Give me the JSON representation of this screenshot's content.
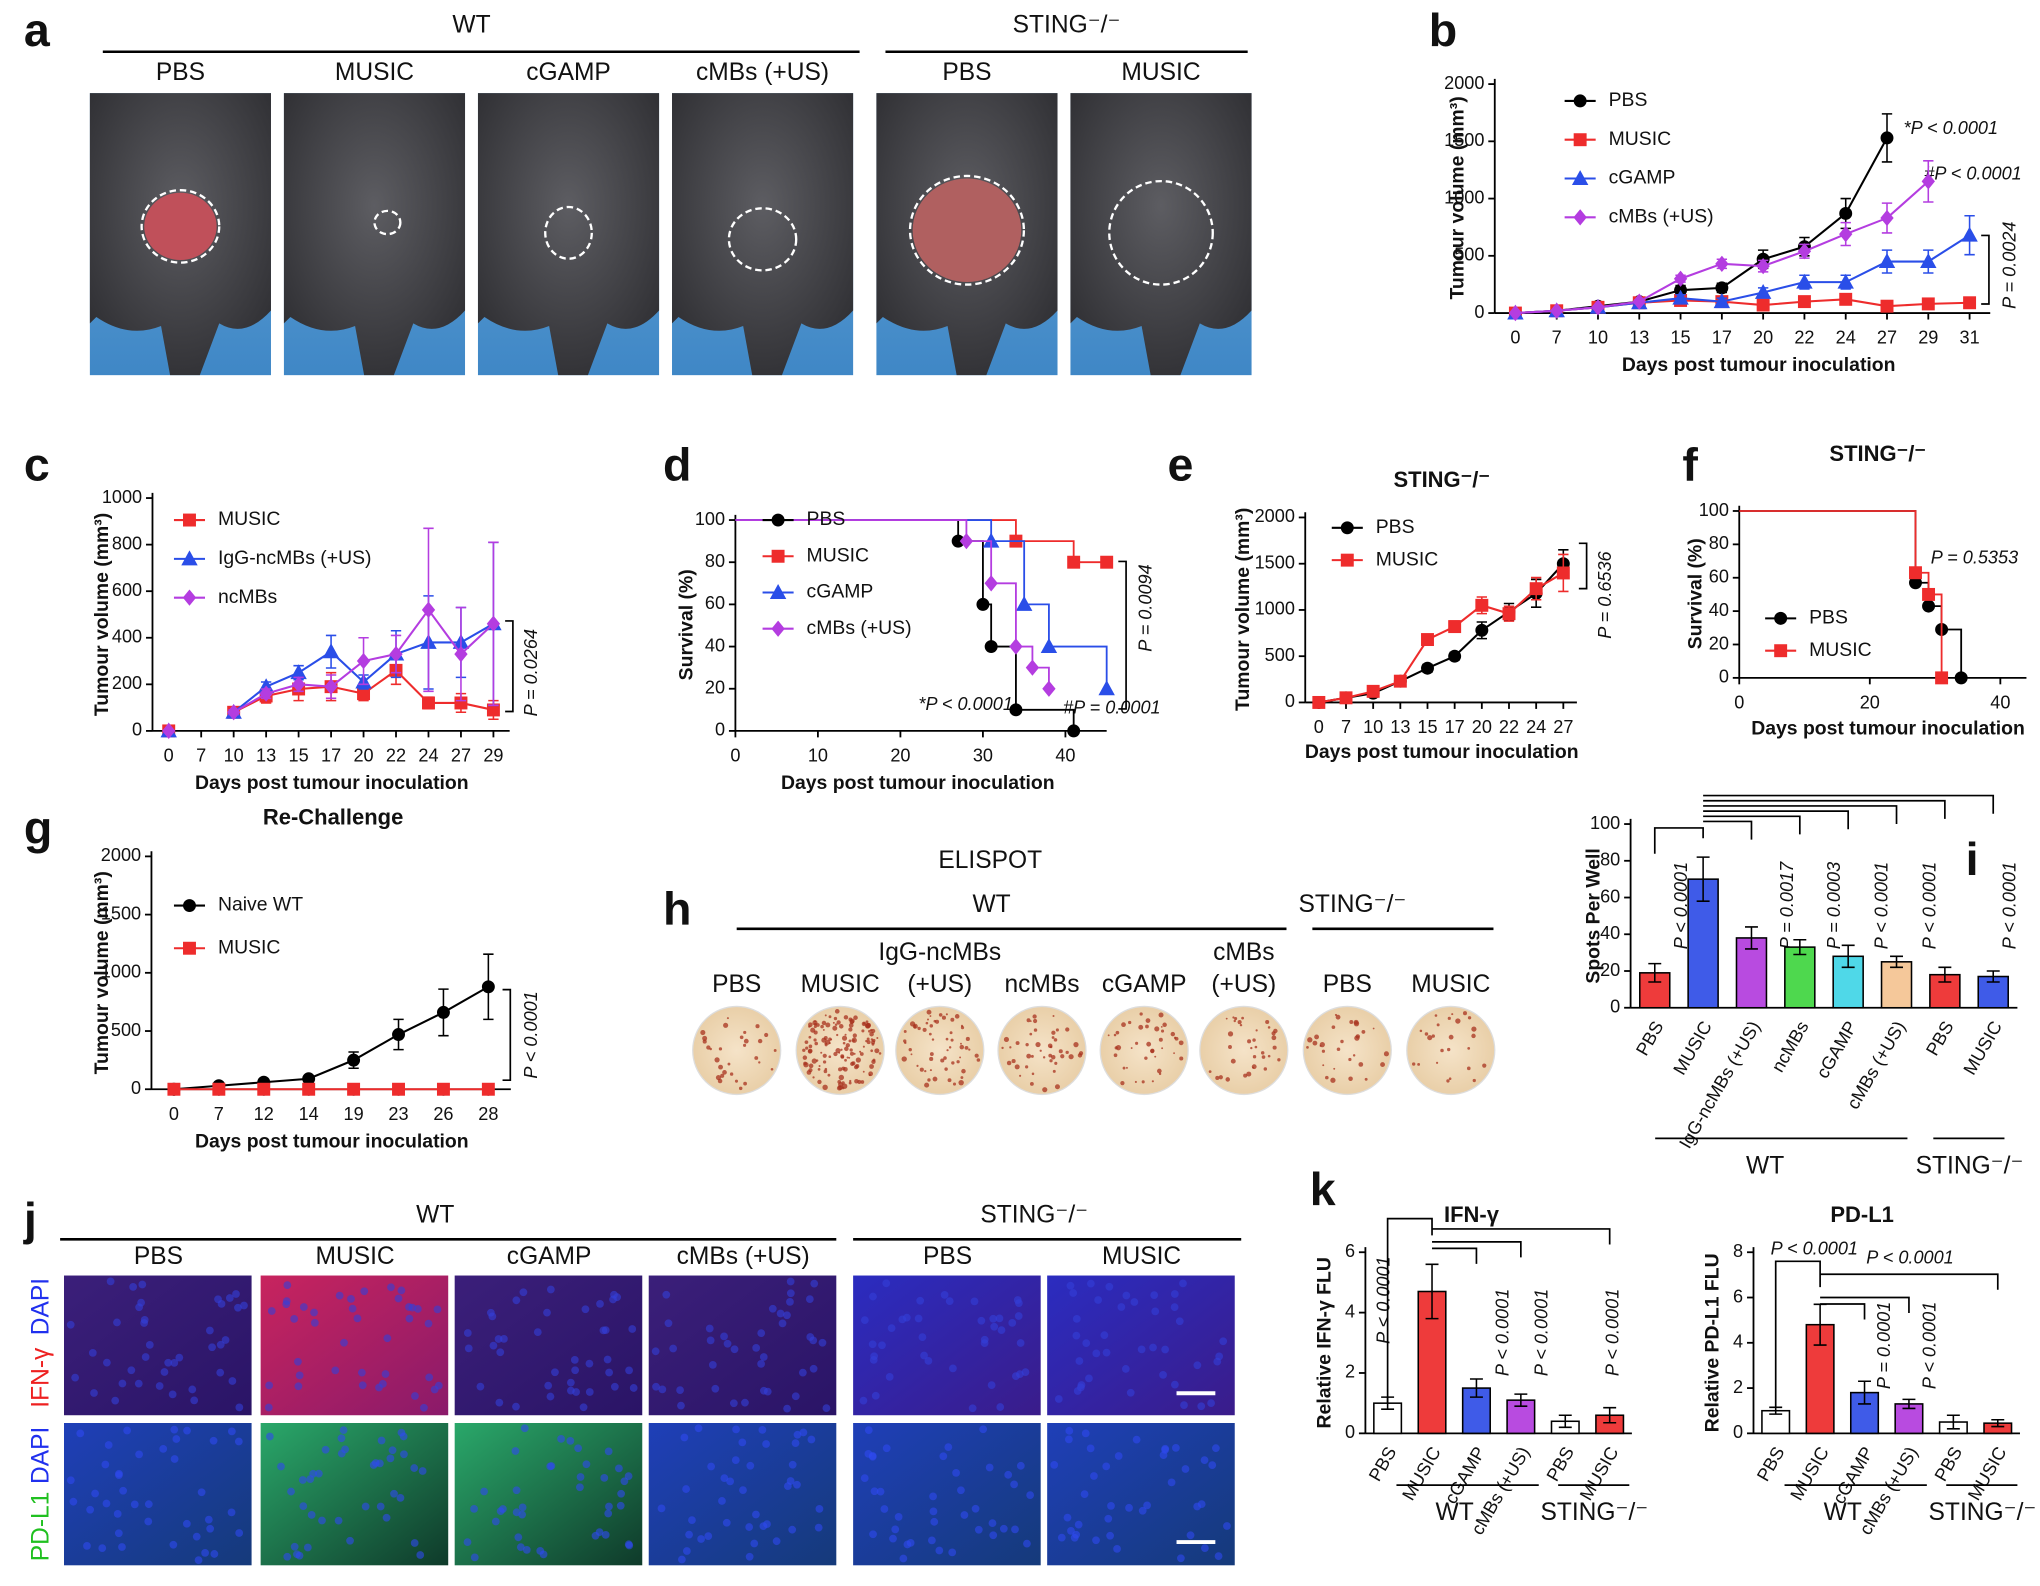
{
  "panel_letters": [
    "a",
    "b",
    "c",
    "d",
    "e",
    "f",
    "g",
    "h",
    "i",
    "j",
    "k"
  ],
  "panel_a": {
    "groups": [
      "WT",
      "STING⁻/⁻"
    ],
    "labels": [
      "PBS",
      "MUSIC",
      "cGAMP",
      "cMBs (+US)",
      "PBS",
      "MUSIC"
    ]
  },
  "panel_h": {
    "title": "ELISPOT",
    "groups": [
      "WT",
      "STING⁻/⁻"
    ],
    "labels": [
      [
        "PBS"
      ],
      [
        "MUSIC"
      ],
      [
        "IgG-ncMBs",
        "(+US)"
      ],
      [
        "ncMBs"
      ],
      [
        "cGAMP"
      ],
      [
        "cMBs",
        "(+US)"
      ],
      [
        "PBS"
      ],
      [
        "MUSIC"
      ]
    ]
  },
  "panel_j": {
    "groups": [
      "WT",
      "STING⁻/⁻"
    ],
    "labels": [
      "PBS",
      "MUSIC",
      "cGAMP",
      "cMBs (+US)",
      "PBS",
      "MUSIC"
    ],
    "row_labels": [
      [
        "IFN-γ",
        "DAPI"
      ],
      [
        "PD-L1",
        "DAPI"
      ]
    ]
  },
  "chart_data": [
    {
      "type": "line",
      "x_label": "Days post tumour inoculation",
      "y_label": "Tumour volume (mm³)",
      "categories": [
        "0",
        "7",
        "10",
        "13",
        "15",
        "17",
        "20",
        "22",
        "24",
        "27",
        "29",
        "31"
      ],
      "ylim": [
        0,
        2000
      ],
      "yticks": [
        0,
        500,
        1000,
        1500,
        2000
      ],
      "series": [
        {
          "name": "PBS",
          "color": "#000000",
          "marker": "circle",
          "values": [
            0,
            20,
            60,
            100,
            200,
            220,
            470,
            580,
            870,
            1530,
            null,
            null
          ],
          "errors": [
            0,
            10,
            15,
            20,
            40,
            40,
            80,
            80,
            130,
            210,
            null,
            null
          ]
        },
        {
          "name": "MUSIC",
          "color": "#ee2c2c",
          "marker": "square",
          "values": [
            0,
            20,
            50,
            90,
            110,
            100,
            70,
            100,
            120,
            60,
            80,
            90
          ],
          "errors": [
            0,
            5,
            10,
            15,
            30,
            25,
            20,
            20,
            20,
            15,
            20,
            30
          ]
        },
        {
          "name": "cGAMP",
          "color": "#2a4ee8",
          "marker": "triangle",
          "values": [
            0,
            20,
            50,
            90,
            130,
            100,
            180,
            270,
            270,
            450,
            450,
            680
          ],
          "errors": [
            0,
            5,
            10,
            15,
            30,
            30,
            40,
            60,
            60,
            100,
            100,
            170
          ]
        },
        {
          "name": "cMBs (+US)",
          "color": "#b43de0",
          "marker": "diamond",
          "values": [
            0,
            20,
            50,
            100,
            300,
            430,
            410,
            540,
            690,
            830,
            1150,
            null
          ],
          "errors": [
            0,
            5,
            10,
            15,
            30,
            40,
            50,
            60,
            100,
            130,
            180,
            null
          ]
        }
      ],
      "annotations": [
        "*P < 0.0001",
        "#P < 0.0001",
        "P = 0.0024"
      ]
    },
    {
      "type": "line",
      "x_label": "Days post tumour inoculation",
      "y_label": "Tumour volume (mm³)",
      "categories": [
        "0",
        "7",
        "10",
        "13",
        "15",
        "17",
        "20",
        "22",
        "24",
        "27",
        "29"
      ],
      "ylim": [
        0,
        1000
      ],
      "yticks": [
        0,
        200,
        400,
        600,
        800,
        1000
      ],
      "series": [
        {
          "name": "MUSIC",
          "color": "#ee2c2c",
          "marker": "square",
          "values": [
            0,
            null,
            80,
            150,
            180,
            190,
            160,
            260,
            120,
            120,
            90
          ],
          "errors": [
            0,
            null,
            10,
            30,
            50,
            60,
            30,
            60,
            25,
            40,
            40
          ]
        },
        {
          "name": "IgG-ncMBs (+US)",
          "color": "#2a4ee8",
          "marker": "triangle",
          "values": [
            0,
            null,
            80,
            190,
            250,
            340,
            210,
            330,
            380,
            380,
            460
          ],
          "errors": [
            0,
            null,
            10,
            20,
            30,
            70,
            30,
            100,
            200,
            150,
            350
          ]
        },
        {
          "name": "ncMBs",
          "color": "#b43de0",
          "marker": "diamond",
          "values": [
            0,
            null,
            80,
            160,
            200,
            190,
            300,
            330,
            520,
            330,
            460
          ],
          "errors": [
            0,
            null,
            10,
            20,
            30,
            50,
            100,
            80,
            350,
            200,
            350
          ]
        }
      ],
      "annotations": [
        "P = 0.0264"
      ]
    },
    {
      "type": "step",
      "x_label": "Days post tumour inoculation",
      "y_label": "Survival (%)",
      "xlim": [
        0,
        45
      ],
      "xticks": [
        0,
        10,
        20,
        30,
        40
      ],
      "ylim": [
        0,
        100
      ],
      "yticks": [
        0,
        20,
        40,
        60,
        80,
        100
      ],
      "series": [
        {
          "name": "PBS",
          "color": "#000000",
          "marker": "circle",
          "x": [
            0,
            27,
            30,
            31,
            34,
            41
          ],
          "values": [
            100,
            90,
            60,
            40,
            10,
            0
          ]
        },
        {
          "name": "MUSIC",
          "color": "#ee2c2c",
          "marker": "square",
          "x": [
            0,
            34,
            41,
            45
          ],
          "values": [
            100,
            90,
            80,
            80
          ]
        },
        {
          "name": "cGAMP",
          "color": "#2a4ee8",
          "marker": "triangle",
          "x": [
            0,
            31,
            35,
            38,
            45
          ],
          "values": [
            100,
            90,
            60,
            40,
            20
          ]
        },
        {
          "name": "cMBs (+US)",
          "color": "#b43de0",
          "marker": "diamond",
          "x": [
            0,
            28,
            31,
            34,
            36,
            38
          ],
          "values": [
            100,
            90,
            70,
            40,
            30,
            20
          ]
        }
      ],
      "annotations": [
        "*P < 0.0001",
        "#P = 0.0001",
        "P = 0.0094"
      ]
    },
    {
      "type": "line",
      "title": "STING⁻/⁻",
      "x_label": "Days post tumour inoculation",
      "y_label": "Tumour volume (mm³)",
      "categories": [
        "0",
        "7",
        "10",
        "13",
        "15",
        "17",
        "20",
        "22",
        "24",
        "27"
      ],
      "ylim": [
        0,
        2000
      ],
      "yticks": [
        0,
        500,
        1000,
        1500,
        2000
      ],
      "series": [
        {
          "name": "PBS",
          "color": "#000000",
          "marker": "circle",
          "values": [
            0,
            50,
            100,
            230,
            370,
            500,
            780,
            980,
            1180,
            1500
          ],
          "errors": [
            0,
            10,
            15,
            20,
            40,
            40,
            90,
            90,
            150,
            150
          ]
        },
        {
          "name": "MUSIC",
          "color": "#ee2c2c",
          "marker": "square",
          "values": [
            0,
            50,
            120,
            230,
            680,
            820,
            1050,
            960,
            1230,
            1400
          ],
          "errors": [
            0,
            10,
            15,
            20,
            50,
            60,
            90,
            80,
            120,
            200
          ]
        }
      ],
      "annotations": [
        "P = 0.6536"
      ]
    },
    {
      "type": "step",
      "title": "STING⁻/⁻",
      "x_label": "Days post tumour inoculation",
      "y_label": "Survival (%)",
      "xlim": [
        0,
        44
      ],
      "xticks": [
        0,
        20,
        40
      ],
      "ylim": [
        0,
        100
      ],
      "yticks": [
        0,
        20,
        40,
        60,
        80,
        100
      ],
      "series": [
        {
          "name": "PBS",
          "color": "#000000",
          "marker": "circle",
          "x": [
            0,
            27,
            29,
            31,
            34
          ],
          "values": [
            100,
            57,
            43,
            29,
            0
          ]
        },
        {
          "name": "MUSIC",
          "color": "#ee2c2c",
          "marker": "square",
          "x": [
            0,
            27,
            29,
            31
          ],
          "values": [
            100,
            63,
            50,
            0
          ]
        }
      ],
      "annotations": [
        "P = 0.5353"
      ]
    },
    {
      "type": "line",
      "title": "Re-Challenge",
      "x_label": "Days post tumour inoculation",
      "y_label": "Tumour volume (mm³)",
      "categories": [
        "0",
        "7",
        "12",
        "14",
        "19",
        "23",
        "26",
        "28"
      ],
      "ylim": [
        0,
        2000
      ],
      "yticks": [
        0,
        500,
        1000,
        1500,
        2000
      ],
      "series": [
        {
          "name": "Naive WT",
          "color": "#000000",
          "marker": "circle",
          "values": [
            0,
            30,
            60,
            90,
            250,
            470,
            660,
            880
          ],
          "errors": [
            0,
            10,
            15,
            20,
            70,
            130,
            200,
            280
          ]
        },
        {
          "name": "MUSIC",
          "color": "#ee2c2c",
          "marker": "square",
          "values": [
            0,
            0,
            0,
            0,
            0,
            0,
            0,
            0
          ],
          "errors": [
            0,
            0,
            0,
            0,
            0,
            0,
            0,
            0
          ]
        }
      ],
      "annotations": [
        "P < 0.0001"
      ]
    },
    {
      "type": "bar",
      "y_label": "Spots Per Well",
      "categories": [
        "PBS",
        "MUSIC",
        "IgG-ncMBs (+US)",
        "ncMBs",
        "cGAMP",
        "cMBs (+US)",
        "PBS",
        "MUSIC"
      ],
      "values": [
        19,
        70,
        38,
        33,
        28,
        25,
        18,
        17
      ],
      "errors": [
        5,
        12,
        6,
        4,
        6,
        3,
        4,
        3
      ],
      "colors": [
        "#ee3b3b",
        "#3f5be8",
        "#b84be0",
        "#4ed84e",
        "#4fd8e8",
        "#f5c89a",
        "#ee3b3b",
        "#3f5be8"
      ],
      "ylim": [
        0,
        100
      ],
      "yticks": [
        0,
        20,
        40,
        60,
        80,
        100
      ],
      "group_labels": [
        "WT",
        "STING⁻/⁻"
      ],
      "annotations": [
        "P < 0.0001",
        "P = 0.0017",
        "P = 0.0003",
        "P < 0.0001",
        "P < 0.0001",
        "P < 0.0001"
      ]
    },
    {
      "type": "bar",
      "title": "IFN-γ",
      "y_label": "Relative IFN-γ FLU",
      "categories": [
        "PBS",
        "MUSIC",
        "cGAMP",
        "cMBs (+US)",
        "PBS",
        "MUSIC"
      ],
      "values": [
        1,
        4.7,
        1.5,
        1.1,
        0.4,
        0.6
      ],
      "errors": [
        0.2,
        0.9,
        0.3,
        0.2,
        0.2,
        0.25
      ],
      "colors": [
        "#ffffff",
        "#ee3b3b",
        "#3f5be8",
        "#b84be0",
        "#ffffff",
        "#ee3b3b"
      ],
      "ylim": [
        0,
        6
      ],
      "yticks": [
        0,
        2,
        4,
        6
      ],
      "group_labels": [
        "WT",
        "STING⁻/⁻"
      ],
      "annotations": [
        "P < 0.0001",
        "P < 0.0001",
        "P < 0.0001",
        "P < 0.0001"
      ]
    },
    {
      "type": "bar",
      "title": "PD-L1",
      "y_label": "Relative PD-L1 FLU",
      "categories": [
        "PBS",
        "MUSIC",
        "cGAMP",
        "cMBs (+US)",
        "PBS",
        "MUSIC"
      ],
      "values": [
        1,
        4.8,
        1.8,
        1.3,
        0.5,
        0.45
      ],
      "errors": [
        0.15,
        0.9,
        0.5,
        0.2,
        0.3,
        0.15
      ],
      "colors": [
        "#ffffff",
        "#ee3b3b",
        "#3f5be8",
        "#b84be0",
        "#ffffff",
        "#ee3b3b"
      ],
      "ylim": [
        0,
        8
      ],
      "yticks": [
        0,
        2,
        4,
        6,
        8
      ],
      "group_labels": [
        "WT",
        "STING⁻/⁻"
      ],
      "annotations": [
        "P < 0.0001",
        "P < 0.0001",
        "P = 0.0001",
        "P < 0.0001"
      ]
    }
  ]
}
